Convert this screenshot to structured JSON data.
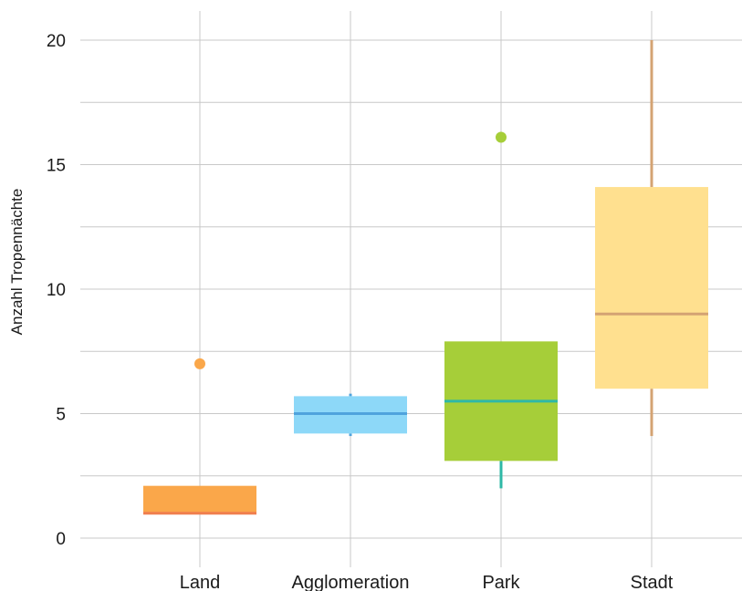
{
  "chart_data": {
    "type": "boxplot",
    "title": "",
    "xlabel": "",
    "ylabel": "Anzahl Tropennächte",
    "ylim": [
      0,
      20
    ],
    "yticks": [
      0,
      5,
      10,
      15,
      20
    ],
    "ytick_labels": [
      "0",
      "5",
      "10",
      "15",
      "20"
    ],
    "grid": true,
    "categories": [
      "Land",
      "Agglomeration",
      "Park",
      "Stadt"
    ],
    "boxes": [
      {
        "category": "Land",
        "whisker_low": 1,
        "q1": 1,
        "median": 1,
        "q3": 2.1,
        "whisker_high": 2.1,
        "outliers": [
          7
        ],
        "fill": "#FAA74A",
        "line": "#F07F4F"
      },
      {
        "category": "Agglomeration",
        "whisker_low": 4.1,
        "q1": 4.2,
        "median": 5,
        "q3": 5.7,
        "whisker_high": 5.8,
        "outliers": [],
        "fill": "#8DD8F8",
        "line": "#4FA3DD"
      },
      {
        "category": "Park",
        "whisker_low": 2,
        "q1": 3.1,
        "median": 5.5,
        "q3": 7.9,
        "whisker_high": 7.9,
        "outliers": [
          16.1
        ],
        "fill": "#A6CE39",
        "line": "#2EB8A6"
      },
      {
        "category": "Stadt",
        "whisker_low": 4.1,
        "q1": 6,
        "median": 9,
        "q3": 14.1,
        "whisker_high": 20,
        "outliers": [],
        "fill": "#FFE08F",
        "line": "#D4A373"
      }
    ],
    "colors": {
      "grid": "#c8c8c8",
      "text": "#1a1a1a"
    }
  }
}
